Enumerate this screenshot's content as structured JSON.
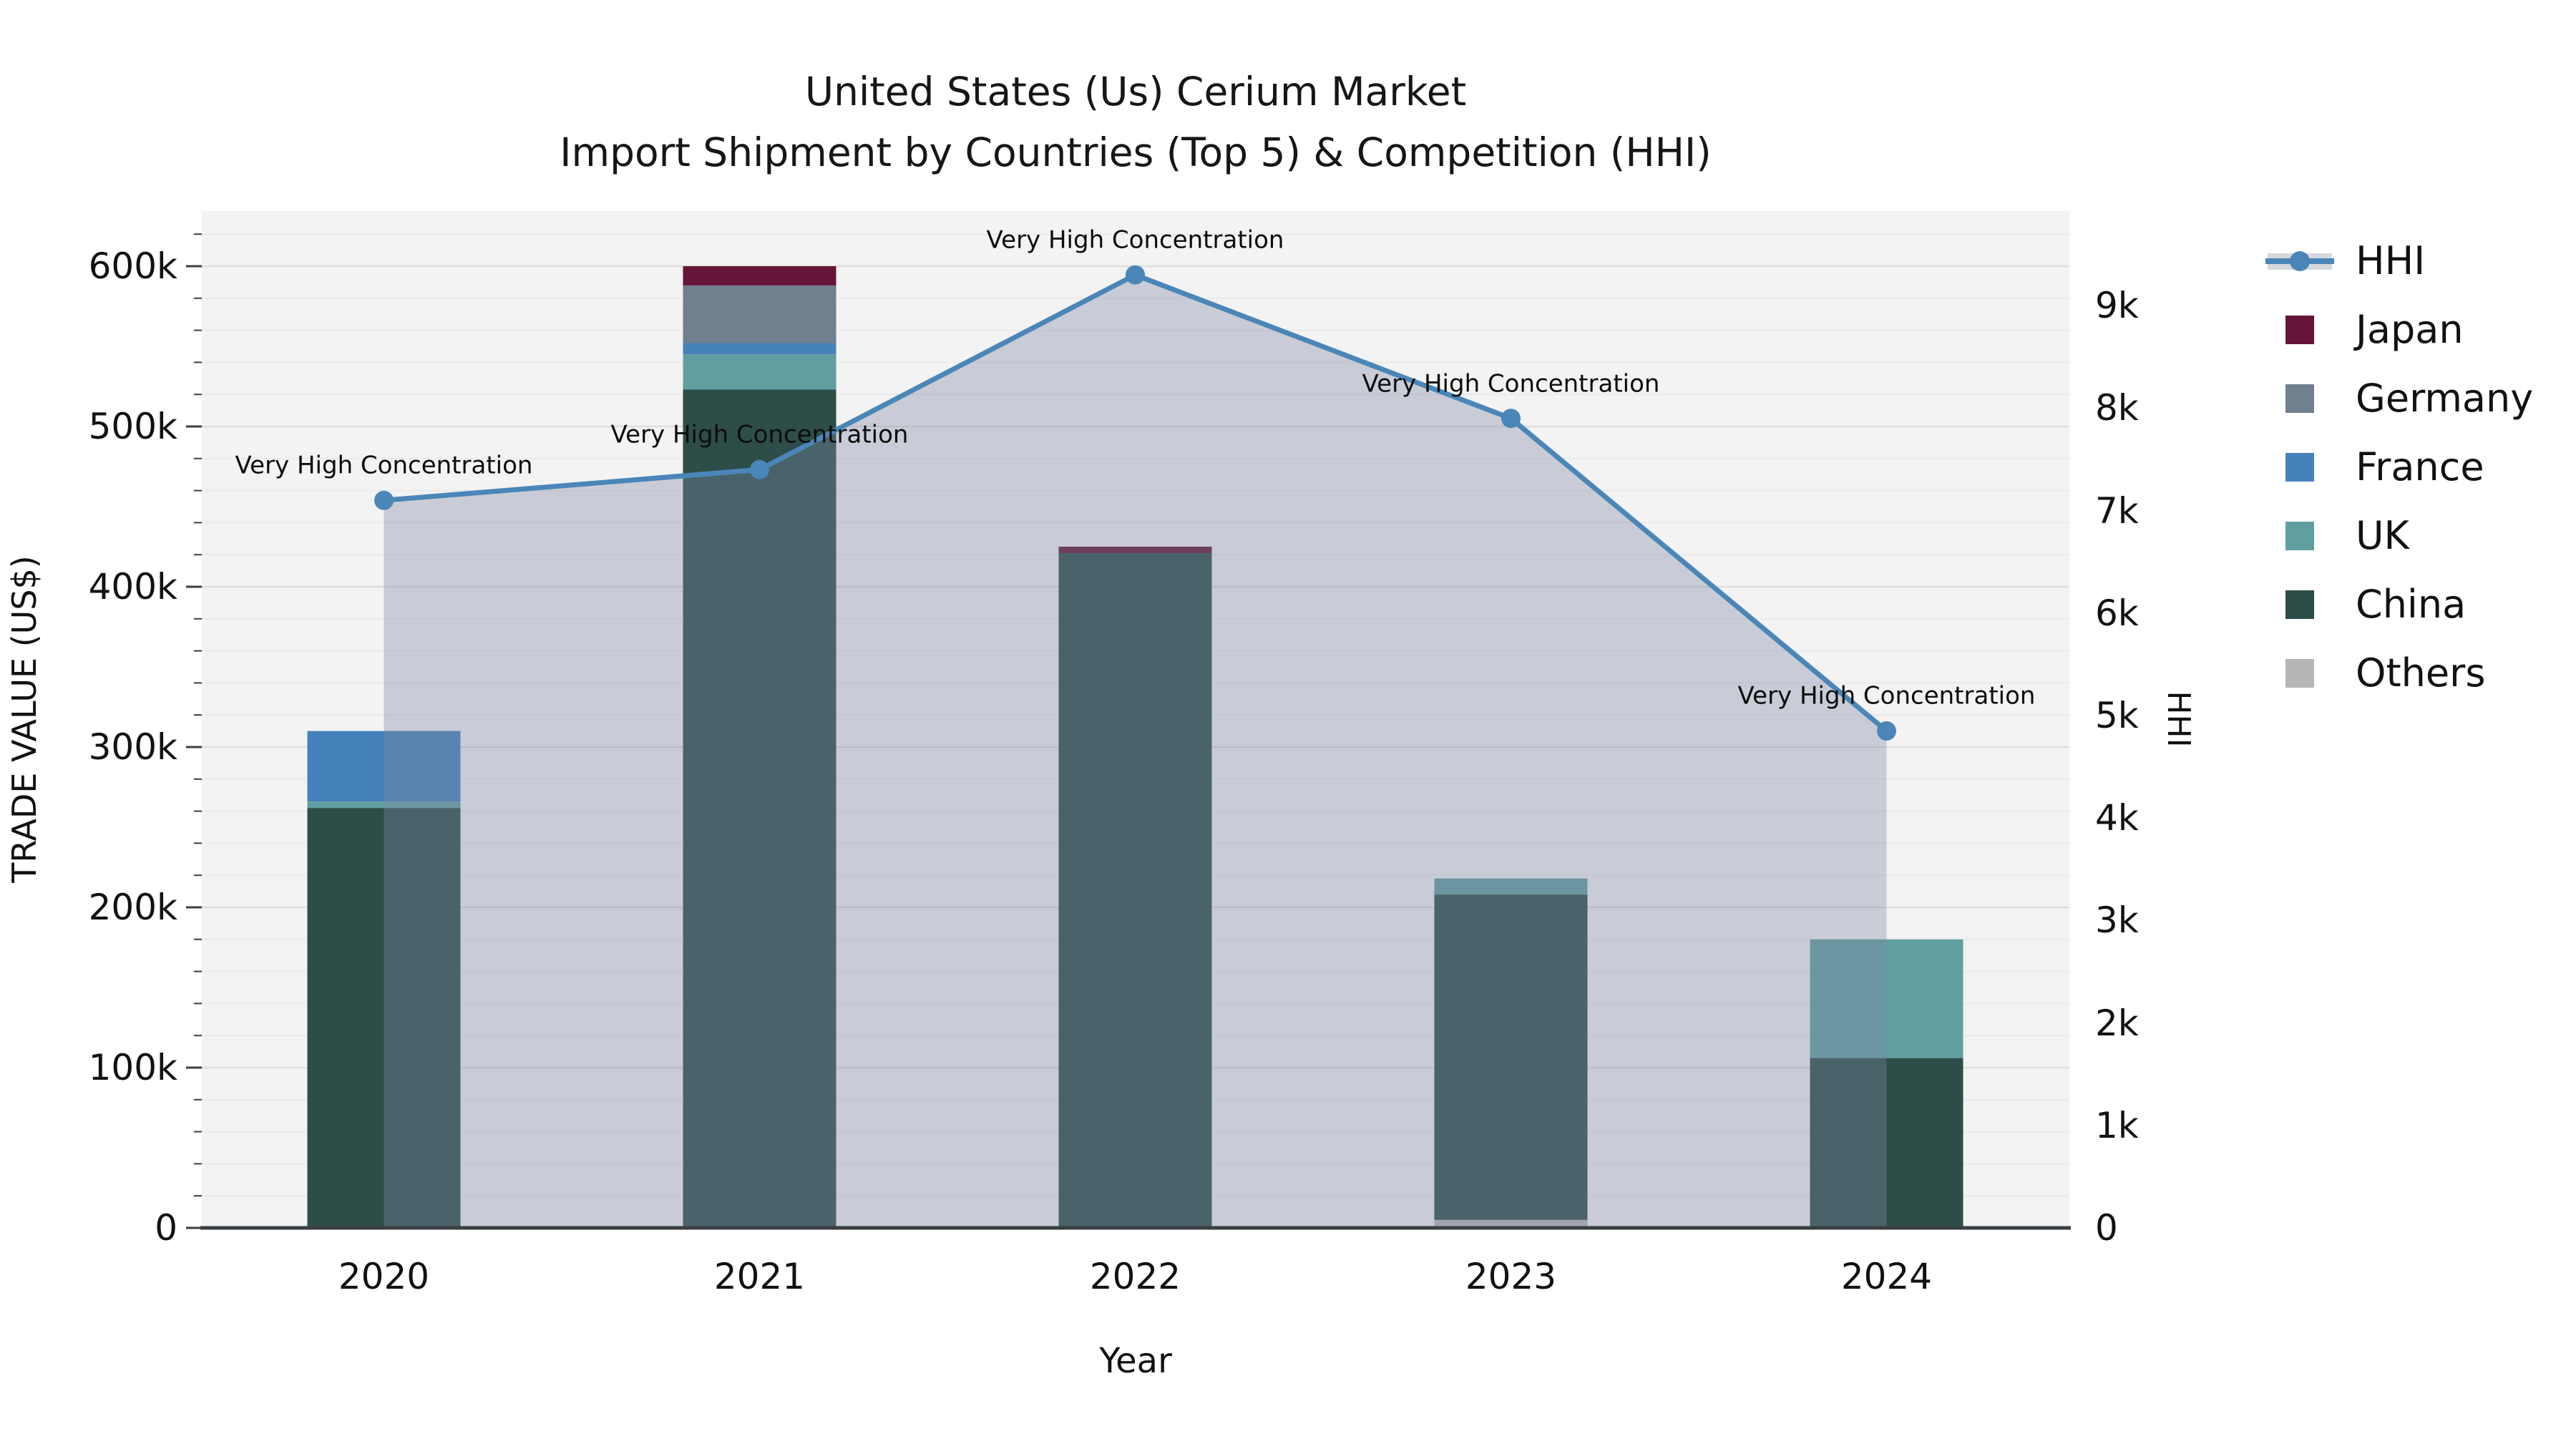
{
  "title": {
    "line1": "United States (Us) Cerium Market",
    "line2": "Import Shipment by Countries (Top 5) & Competition (HHI)"
  },
  "chart_data": {
    "type": "bar+line",
    "stacked": true,
    "title": "United States (Us) Cerium Market — Import Shipment by Countries (Top 5) & Competition (HHI)",
    "categories": [
      "2020",
      "2021",
      "2022",
      "2023",
      "2024"
    ],
    "series": [
      {
        "name": "Others",
        "color": "#b4b6b8",
        "values": [
          0,
          0,
          0,
          5000,
          0
        ]
      },
      {
        "name": "China",
        "color": "#2d4d49",
        "values": [
          262000,
          523000,
          421000,
          203000,
          106000
        ]
      },
      {
        "name": "UK",
        "color": "#609fa0",
        "values": [
          4000,
          22000,
          0,
          10000,
          74000
        ]
      },
      {
        "name": "France",
        "color": "#4581bb",
        "values": [
          44000,
          7000,
          0,
          0,
          0
        ]
      },
      {
        "name": "Germany",
        "color": "#71808f",
        "values": [
          0,
          36000,
          0,
          0,
          0
        ]
      },
      {
        "name": "Japan",
        "color": "#661539",
        "values": [
          0,
          12000,
          4000,
          0,
          0
        ]
      }
    ],
    "bar_totals": [
      310000,
      600000,
      425000,
      218000,
      180000
    ],
    "line_series": {
      "name": "HHI",
      "color": "#4a86b8",
      "area_color": "rgba(127,136,163,0.36)",
      "yaxis": "right",
      "values": [
        7100,
        7400,
        9300,
        7900,
        4850
      ]
    },
    "point_annotations": [
      "Very High Concentration",
      "Very High Concentration",
      "Very High Concentration",
      "Very High Concentration",
      "Very High Concentration"
    ],
    "xlabel": "Year",
    "ylabel_left": "TRADE VALUE (US$)",
    "ylabel_right": "HHI",
    "y_left": {
      "lim": [
        0,
        634000
      ],
      "tick_labels": [
        "0",
        "100k",
        "200k",
        "300k",
        "400k",
        "500k",
        "600k"
      ],
      "tick_values": [
        0,
        100000,
        200000,
        300000,
        400000,
        500000,
        600000
      ],
      "minor_step": 20000
    },
    "y_right": {
      "lim": [
        0,
        9920
      ],
      "tick_labels": [
        "0",
        "1k",
        "2k",
        "3k",
        "4k",
        "5k",
        "6k",
        "7k",
        "8k",
        "9k"
      ],
      "tick_values": [
        0,
        1000,
        2000,
        3000,
        4000,
        5000,
        6000,
        7000,
        8000,
        9000
      ]
    },
    "grid": true,
    "plot_bg": "#f2f3f2",
    "grid_major_color": "#dedede",
    "grid_minor_color": "#eaeaea",
    "axis_line_color": "#3a3e42",
    "legend_position": "right"
  },
  "legend": {
    "items": [
      {
        "label": "HHI",
        "type": "line",
        "color": "#4a86b8",
        "band_color": "#d5d8dc"
      },
      {
        "label": "Japan",
        "type": "swatch",
        "color": "#661539"
      },
      {
        "label": "Germany",
        "type": "swatch",
        "color": "#71808f"
      },
      {
        "label": "France",
        "type": "swatch",
        "color": "#4581bb"
      },
      {
        "label": "UK",
        "type": "swatch",
        "color": "#609fa0"
      },
      {
        "label": "China",
        "type": "swatch",
        "color": "#2d4d49"
      },
      {
        "label": "Others",
        "type": "swatch",
        "color": "#b4b6b8"
      }
    ]
  }
}
